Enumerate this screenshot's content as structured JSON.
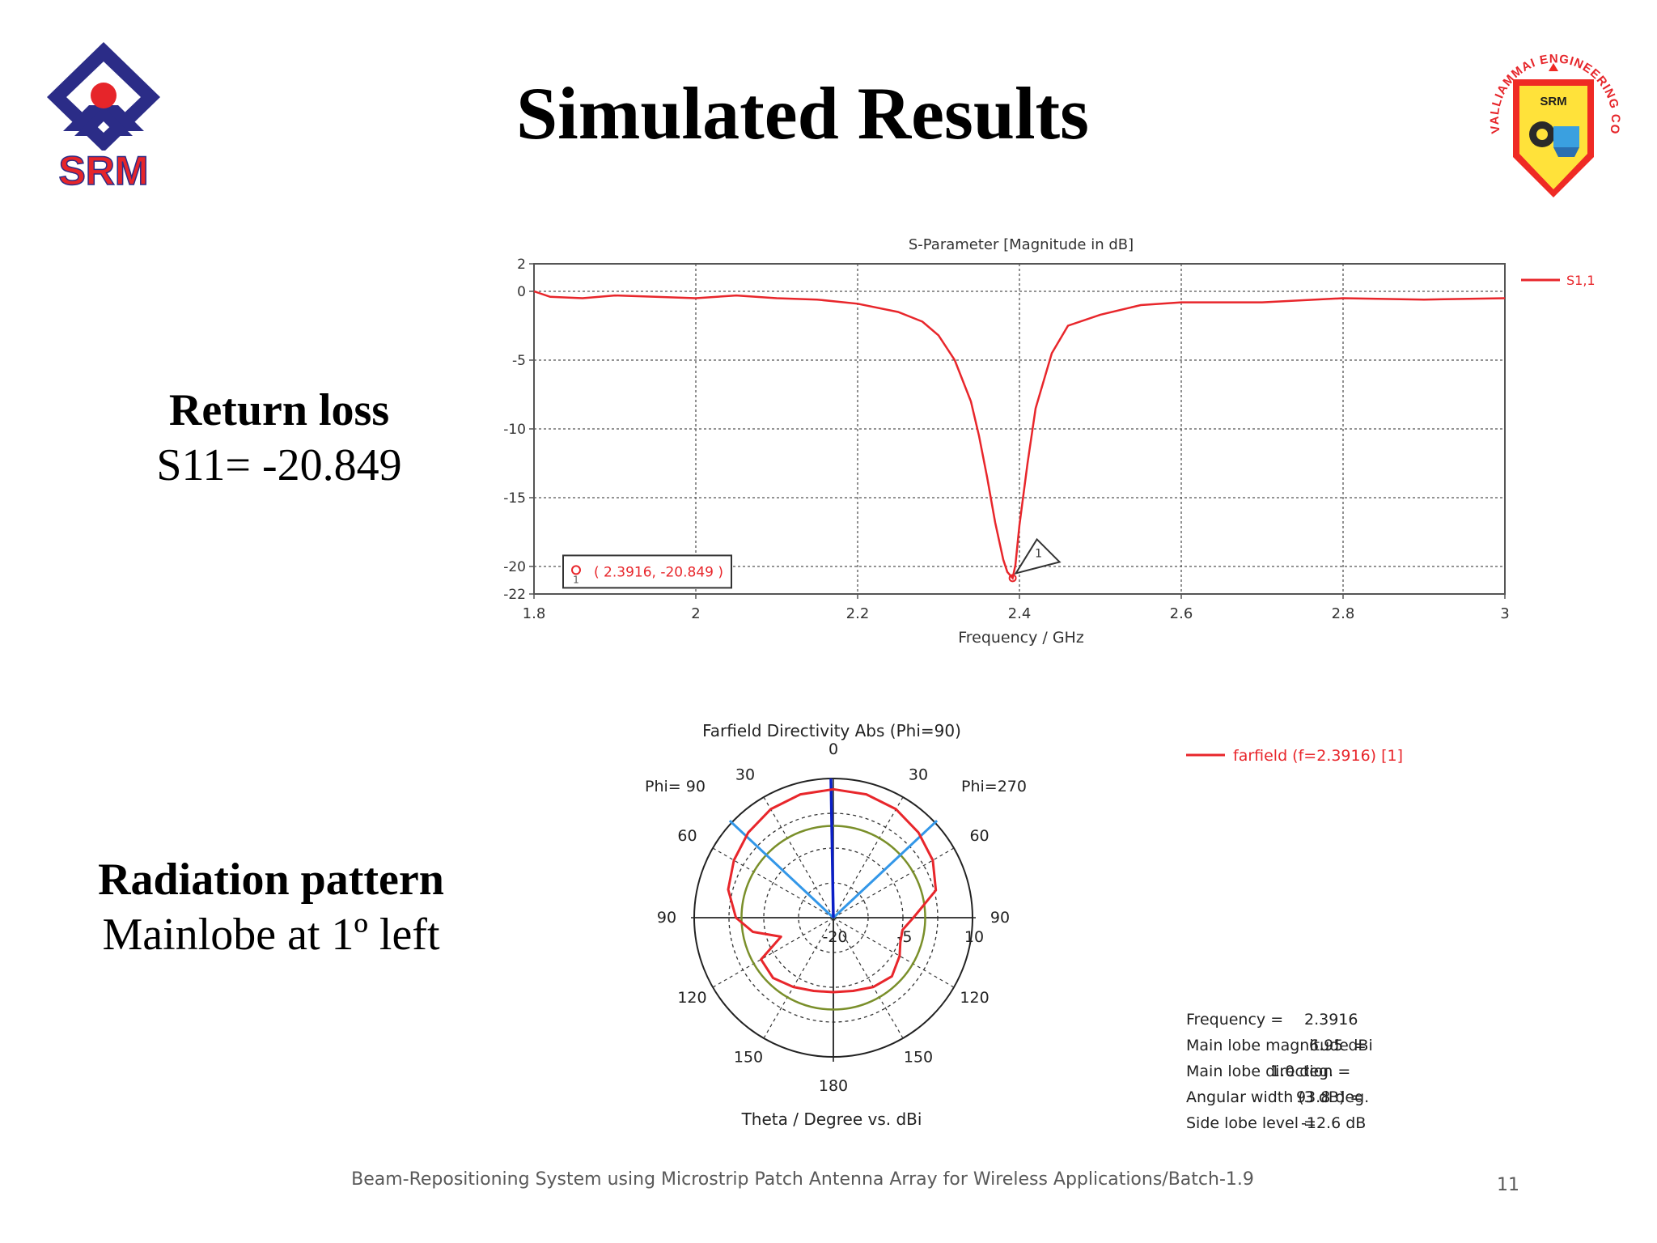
{
  "slide": {
    "title": "Simulated Results",
    "return_loss_heading": "Return loss",
    "return_loss_value": "S11= -20.849",
    "radiation_heading": "Radiation pattern",
    "radiation_value": "Mainlobe at 1º left",
    "footer": "Beam-Repositioning System using Microstrip Patch Antenna Array for Wireless Applications/Batch-1.9",
    "page_number": "11"
  },
  "logos": {
    "left_text": "SRM",
    "right_ring_text": "VALLIAMMAI ENGINEERING COLLEGE",
    "right_shield_text": "SRM"
  },
  "colors": {
    "curve_red": "#e8262b",
    "srm_blue": "#2b2c87",
    "srm_red": "#e6252a",
    "beam_blue": "#3397e8",
    "dark_blue": "#0b1fc7",
    "circle_olive": "#7a8f2a"
  },
  "chart_data": [
    {
      "type": "line",
      "title": "S-Parameter [Magnitude in dB]",
      "xlabel": "Frequency / GHz",
      "ylabel": "",
      "xlim": [
        1.8,
        3.0
      ],
      "ylim": [
        -22,
        2
      ],
      "x_ticks": [
        "1.8",
        "2",
        "2.2",
        "2.4",
        "2.6",
        "2.8",
        "3"
      ],
      "y_ticks": [
        "2",
        "0",
        "-5",
        "-10",
        "-15",
        "-20",
        "-22"
      ],
      "grid": true,
      "legend": "top-right",
      "marker_label": "( 2.3916, -20.849 )",
      "marker_id": "1",
      "series": [
        {
          "name": "S1,1",
          "x": [
            1.8,
            1.82,
            1.86,
            1.9,
            1.95,
            2.0,
            2.05,
            2.1,
            2.15,
            2.2,
            2.25,
            2.28,
            2.3,
            2.32,
            2.34,
            2.35,
            2.36,
            2.37,
            2.38,
            2.385,
            2.3916,
            2.395,
            2.4,
            2.41,
            2.42,
            2.44,
            2.46,
            2.5,
            2.55,
            2.6,
            2.7,
            2.8,
            2.9,
            3.0
          ],
          "y": [
            0.0,
            -0.4,
            -0.5,
            -0.3,
            -0.4,
            -0.5,
            -0.3,
            -0.5,
            -0.6,
            -0.9,
            -1.5,
            -2.2,
            -3.2,
            -5.0,
            -8.0,
            -10.5,
            -13.5,
            -16.8,
            -19.5,
            -20.4,
            -20.849,
            -19.9,
            -17.0,
            -12.5,
            -8.5,
            -4.5,
            -2.5,
            -1.7,
            -1.0,
            -0.8,
            -0.8,
            -0.5,
            -0.6,
            -0.5
          ]
        }
      ]
    },
    {
      "type": "polar",
      "title": "Farfield Directivity Abs (Phi=90)",
      "xlabel": "Theta / Degree vs. dBi",
      "left_label": "Phi= 90",
      "right_label": "Phi=270",
      "angle_ticks": [
        "0",
        "30",
        "30",
        "60",
        "60",
        "90",
        "90",
        "120",
        "120",
        "150",
        "150",
        "180"
      ],
      "radial_ticks": [
        "-20",
        "-5",
        "10"
      ],
      "legend": "farfield (f=2.3916) [1]",
      "info": [
        {
          "label": "Frequency = ",
          "value": "2.3916"
        },
        {
          "label": "Main lobe magnitude = ",
          "value": "6.95 dBi"
        },
        {
          "label": "Main lobe direction = ",
          "value": "1.0 deg."
        },
        {
          "label": "Angular width (3 dB) = ",
          "value": "93.8 deg."
        },
        {
          "label": "Side lobe level = ",
          "value": "-12.6 dB"
        }
      ],
      "series": [
        {
          "name": "farfield (f=2.3916) [1]",
          "theta_deg": [
            0,
            15,
            30,
            45,
            60,
            75,
            90,
            100,
            110,
            120,
            135,
            150,
            165,
            180,
            195,
            210,
            225,
            240,
            250,
            260,
            270,
            285,
            300,
            315,
            330,
            345,
            360
          ],
          "dbi": [
            6.9,
            6.7,
            6.0,
            4.6,
            3.0,
            1.3,
            -2.0,
            -6.5,
            -14.0,
            -6.0,
            -5.5,
            -7.0,
            -8.2,
            -8.6,
            -8.2,
            -7.0,
            -6.2,
            -8.0,
            -9.5,
            -9.8,
            -7.0,
            0.5,
            3.0,
            4.6,
            6.0,
            6.7,
            6.9
          ]
        }
      ],
      "beam_direction_deg": 1.0,
      "beamwidth_edges_deg": [
        -46.9,
        46.9
      ]
    }
  ]
}
